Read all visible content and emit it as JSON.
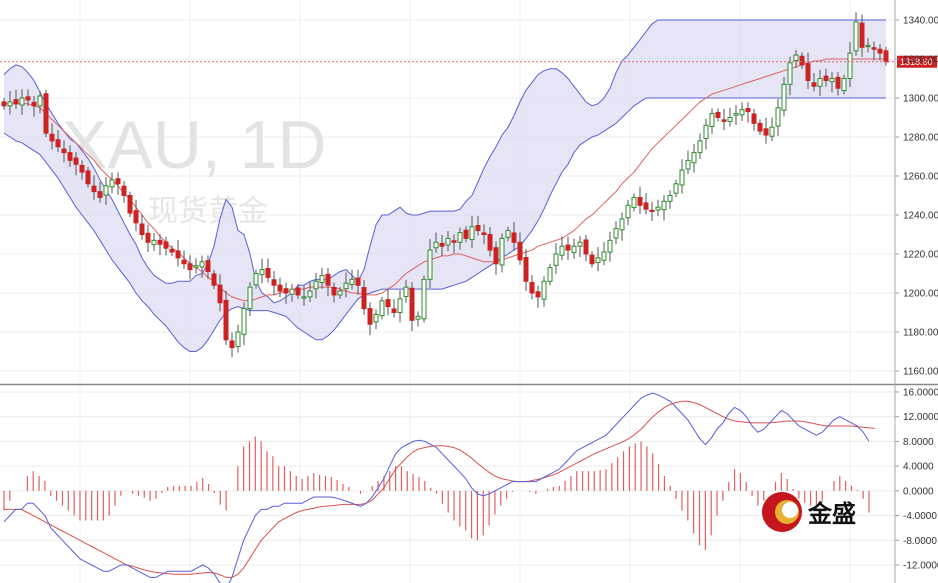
{
  "watermark": {
    "symbol": "XAU, 1D",
    "name": "现货黄金"
  },
  "logo": {
    "text": "金盛"
  },
  "current_price": "1318.60",
  "colors": {
    "up": "#2e8b2e",
    "down": "#cc2222",
    "band": "#5a5fd8",
    "band_fill": "#dcdcf2",
    "mid": "#e06060",
    "signal": "#e05050",
    "macd": "#5a5fd8",
    "hist": "#e06060",
    "price_line": "#e06060"
  },
  "chart_data": [
    {
      "type": "candlestick",
      "title": "",
      "ylim": [
        1150,
        1345
      ],
      "y_ticks": [
        "1340.00",
        "1320.00",
        "1300.00",
        "1280.00",
        "1260.00",
        "1240.00",
        "1220.00",
        "1200.00",
        "1180.00",
        "1160.00"
      ],
      "indicators": [
        "Bollinger Bands (upper, middle, lower)"
      ],
      "close": [
        1296,
        1298,
        1297,
        1300,
        1299,
        1296,
        1301,
        1282,
        1278,
        1275,
        1272,
        1268,
        1266,
        1262,
        1256,
        1252,
        1249,
        1255,
        1258,
        1256,
        1250,
        1241,
        1236,
        1230,
        1226,
        1227,
        1225,
        1223,
        1221,
        1218,
        1215,
        1212,
        1214,
        1216,
        1211,
        1204,
        1195,
        1176,
        1172,
        1180,
        1192,
        1203,
        1210,
        1212,
        1208,
        1204,
        1201,
        1200,
        1202,
        1199,
        1198,
        1201,
        1206,
        1209,
        1204,
        1199,
        1201,
        1205,
        1207,
        1204,
        1192,
        1184,
        1189,
        1196,
        1193,
        1190,
        1197,
        1203,
        1186,
        1188,
        1207,
        1222,
        1226,
        1224,
        1228,
        1226,
        1231,
        1228,
        1234,
        1232,
        1230,
        1222,
        1215,
        1228,
        1232,
        1226,
        1217,
        1206,
        1200,
        1198,
        1206,
        1213,
        1220,
        1224,
        1222,
        1224,
        1226,
        1220,
        1215,
        1218,
        1221,
        1227,
        1233,
        1238,
        1245,
        1249,
        1245,
        1243,
        1242,
        1244,
        1247,
        1250,
        1256,
        1263,
        1268,
        1272,
        1278,
        1286,
        1292,
        1290,
        1288,
        1290,
        1292,
        1294,
        1293,
        1287,
        1283,
        1281,
        1285,
        1295,
        1307,
        1318,
        1322,
        1317,
        1309,
        1306,
        1310,
        1309,
        1310,
        1305,
        1310,
        1323,
        1339,
        1326,
        1327,
        1325,
        1323,
        1318.6
      ],
      "bollinger_upper": [
        1312,
        1315,
        1317,
        1316,
        1313,
        1309,
        1303,
        1297,
        1292,
        1287,
        1283,
        1279,
        1277,
        1273,
        1269,
        1264,
        1258,
        1253,
        1248,
        1242,
        1236,
        1230,
        1225,
        1218,
        1213,
        1209,
        1207,
        1205,
        1205,
        1206,
        1206,
        1206,
        1209,
        1210,
        1215,
        1224,
        1238,
        1248,
        1244,
        1232,
        1230,
        1220,
        1206,
        1200,
        1198,
        1195,
        1196,
        1198,
        1200,
        1204,
        1204,
        1206,
        1207,
        1207,
        1207,
        1209,
        1211,
        1212,
        1209,
        1206,
        1212,
        1224,
        1235,
        1240,
        1240,
        1242,
        1244,
        1241,
        1240,
        1240,
        1241,
        1242,
        1242,
        1242,
        1242,
        1242,
        1243,
        1247,
        1250,
        1257,
        1264,
        1270,
        1275,
        1281,
        1285,
        1291,
        1298,
        1304,
        1308,
        1312,
        1314,
        1315,
        1315,
        1313,
        1310,
        1306,
        1302,
        1298,
        1296,
        1297,
        1300,
        1305,
        1313,
        1319,
        1322,
        1326,
        1330,
        1334,
        1338,
        1340,
        1340,
        1340,
        1340,
        1340,
        1340,
        1340,
        1340,
        1340,
        1340,
        1340,
        1340,
        1340,
        1340,
        1340,
        1340,
        1340,
        1340,
        1340,
        1340,
        1340,
        1340,
        1340,
        1340,
        1340,
        1340,
        1340,
        1340,
        1340,
        1340,
        1340,
        1340,
        1340,
        1340,
        1340,
        1340,
        1340,
        1340,
        1340
      ],
      "bollinger_mid": [
        1297,
        1297,
        1297,
        1297,
        1297,
        1296,
        1295,
        1292,
        1289,
        1286,
        1283,
        1280,
        1277,
        1274,
        1271,
        1268,
        1264,
        1261,
        1258,
        1255,
        1251,
        1248,
        1244,
        1240,
        1236,
        1233,
        1229,
        1226,
        1223,
        1221,
        1218,
        1215,
        1213,
        1211,
        1208,
        1206,
        1203,
        1200,
        1198,
        1197,
        1196,
        1196,
        1197,
        1198,
        1199,
        1199,
        1200,
        1201,
        1201,
        1202,
        1202,
        1203,
        1203,
        1203,
        1203,
        1203,
        1202,
        1201,
        1200,
        1200,
        1199,
        1199,
        1199,
        1200,
        1202,
        1204,
        1207,
        1210,
        1212,
        1214,
        1216,
        1217,
        1218,
        1219,
        1219,
        1220,
        1220,
        1219,
        1218,
        1217,
        1216,
        1216,
        1216,
        1217,
        1218,
        1219,
        1220,
        1221,
        1222,
        1224,
        1225,
        1226,
        1227,
        1228,
        1230,
        1232,
        1235,
        1238,
        1240,
        1243,
        1246,
        1249,
        1252,
        1256,
        1259,
        1262,
        1266,
        1270,
        1274,
        1277,
        1280,
        1283,
        1286,
        1289,
        1292,
        1295,
        1298,
        1300,
        1302,
        1303,
        1304,
        1305,
        1306,
        1307,
        1308,
        1309,
        1310,
        1311,
        1312,
        1313,
        1314,
        1315,
        1316,
        1317,
        1318,
        1319,
        1319,
        1320,
        1320,
        1320,
        1320,
        1320,
        1320,
        1320,
        1320,
        1320,
        1320,
        1320
      ],
      "bollinger_lower": [
        1282,
        1280,
        1278,
        1277,
        1275,
        1273,
        1271,
        1267,
        1263,
        1259,
        1254,
        1249,
        1244,
        1240,
        1236,
        1232,
        1227,
        1222,
        1217,
        1213,
        1209,
        1205,
        1200,
        1196,
        1193,
        1189,
        1186,
        1183,
        1179,
        1175,
        1172,
        1170,
        1170,
        1172,
        1176,
        1181,
        1186,
        1190,
        1192,
        1193,
        1192,
        1191,
        1191,
        1191,
        1191,
        1190,
        1189,
        1188,
        1185,
        1182,
        1180,
        1178,
        1176,
        1176,
        1178,
        1181,
        1185,
        1189,
        1193,
        1197,
        1199,
        1200,
        1201,
        1202,
        1202,
        1202,
        1202,
        1202,
        1202,
        1202,
        1202,
        1202,
        1202,
        1202,
        1203,
        1204,
        1205,
        1206,
        1208,
        1210,
        1212,
        1214,
        1216,
        1218,
        1220,
        1222,
        1224,
        1228,
        1232,
        1237,
        1243,
        1250,
        1256,
        1262,
        1266,
        1272,
        1276,
        1278,
        1280,
        1281,
        1283,
        1285,
        1287,
        1290,
        1293,
        1296,
        1298,
        1300,
        1300,
        1300,
        1300,
        1300,
        1300,
        1300,
        1300,
        1300,
        1300,
        1300,
        1300,
        1300,
        1300,
        1300,
        1300,
        1300,
        1300,
        1300,
        1300,
        1300,
        1300,
        1300,
        1300,
        1300,
        1300,
        1300,
        1300,
        1300,
        1300,
        1300,
        1300,
        1300,
        1300,
        1300,
        1300,
        1300,
        1300,
        1300,
        1300,
        1300
      ]
    },
    {
      "type": "line",
      "title": "",
      "indicator": "MACD",
      "ylim": [
        -14,
        17
      ],
      "y_ticks": [
        "16.0000",
        "12.0000",
        "8.0000",
        "4.0000",
        "0.0000",
        "-4.0000",
        "-8.0000",
        "-12.0000"
      ],
      "macd": [
        -5,
        -4,
        -3,
        -3,
        -2,
        -2,
        -3,
        -4,
        -6,
        -7,
        -8,
        -9,
        -10,
        -11,
        -11.5,
        -12,
        -12.5,
        -13,
        -13,
        -12.5,
        -12,
        -12,
        -12.5,
        -13,
        -13.5,
        -14,
        -14,
        -13.5,
        -13,
        -13,
        -13,
        -13,
        -13,
        -12.5,
        -12,
        -12.5,
        -13.5,
        -15,
        -16,
        -14,
        -11,
        -8,
        -6,
        -4,
        -3,
        -3,
        -2.5,
        -2.5,
        -2,
        -2,
        -2,
        -2,
        -1.5,
        -1,
        -1,
        -1,
        -1,
        -1.2,
        -1.5,
        -1.8,
        -2.2,
        -2.5,
        -2,
        -1,
        0.5,
        2,
        4,
        6,
        7,
        7.5,
        8,
        8.2,
        8,
        7.5,
        7,
        6,
        5,
        4,
        3,
        2,
        0.5,
        -0.5,
        -0.8,
        -0.5,
        0,
        0.5,
        1,
        1.5,
        1.5,
        1.5,
        1.5,
        1.5,
        2,
        2.5,
        3,
        3.5,
        4.5,
        5.5,
        6.5,
        7,
        7.5,
        8,
        8.5,
        9,
        10,
        11,
        12,
        13,
        14,
        15,
        15.5,
        15.8,
        15.5,
        15,
        14.5,
        13.5,
        12.5,
        11.5,
        10,
        8.5,
        7.5,
        8.5,
        10,
        11,
        12.5,
        13.5,
        13,
        12,
        10.5,
        9.5,
        10,
        11,
        12,
        13,
        12.5,
        11.5,
        10.5,
        10,
        9.5,
        9,
        9.5,
        10.5,
        11.5,
        12,
        11.5,
        11,
        10.5,
        9.5,
        8
      ],
      "signal": [
        -3,
        -3,
        -3,
        -3,
        -3.5,
        -4,
        -4.5,
        -5,
        -5.5,
        -6,
        -6.5,
        -7,
        -7.5,
        -8,
        -8.5,
        -9,
        -9.5,
        -10,
        -10.5,
        -11,
        -11.5,
        -12,
        -12.2,
        -12.5,
        -12.8,
        -13,
        -13.2,
        -13.3,
        -13.4,
        -13.5,
        -13.5,
        -13.5,
        -13.5,
        -13.4,
        -13.3,
        -13.2,
        -13.3,
        -13.6,
        -14,
        -14,
        -13.5,
        -12.5,
        -11,
        -9.5,
        -8,
        -7,
        -6,
        -5,
        -4.5,
        -4,
        -3.5,
        -3.2,
        -3,
        -2.8,
        -2.6,
        -2.5,
        -2.4,
        -2.3,
        -2.2,
        -2.2,
        -2.2,
        -2.2,
        -2,
        -1.5,
        -0.5,
        0.5,
        2,
        3.5,
        4.5,
        5.5,
        6.3,
        6.8,
        7,
        7.2,
        7.3,
        7.3,
        7.2,
        7,
        6.6,
        6,
        5.3,
        4.5,
        3.7,
        3,
        2.4,
        2,
        1.8,
        1.6,
        1.5,
        1.5,
        1.6,
        1.8,
        2,
        2.3,
        2.6,
        3,
        3.5,
        4,
        4.5,
        5,
        5.5,
        6,
        6.4,
        6.8,
        7.2,
        7.6,
        8,
        8.5,
        9.2,
        10,
        11,
        12,
        12.8,
        13.5,
        14,
        14.3,
        14.5,
        14.5,
        14.3,
        14,
        13.5,
        13,
        12.5,
        12,
        11.6,
        11.3,
        11.2,
        11.1,
        11,
        11,
        11,
        11,
        11.1,
        11.2,
        11.3,
        11.3,
        11.3,
        11.2,
        11,
        10.8,
        10.6,
        10.5,
        10.5,
        10.5,
        10.5,
        10.5,
        10.4,
        10.3,
        10.2,
        10.1
      ]
    }
  ]
}
